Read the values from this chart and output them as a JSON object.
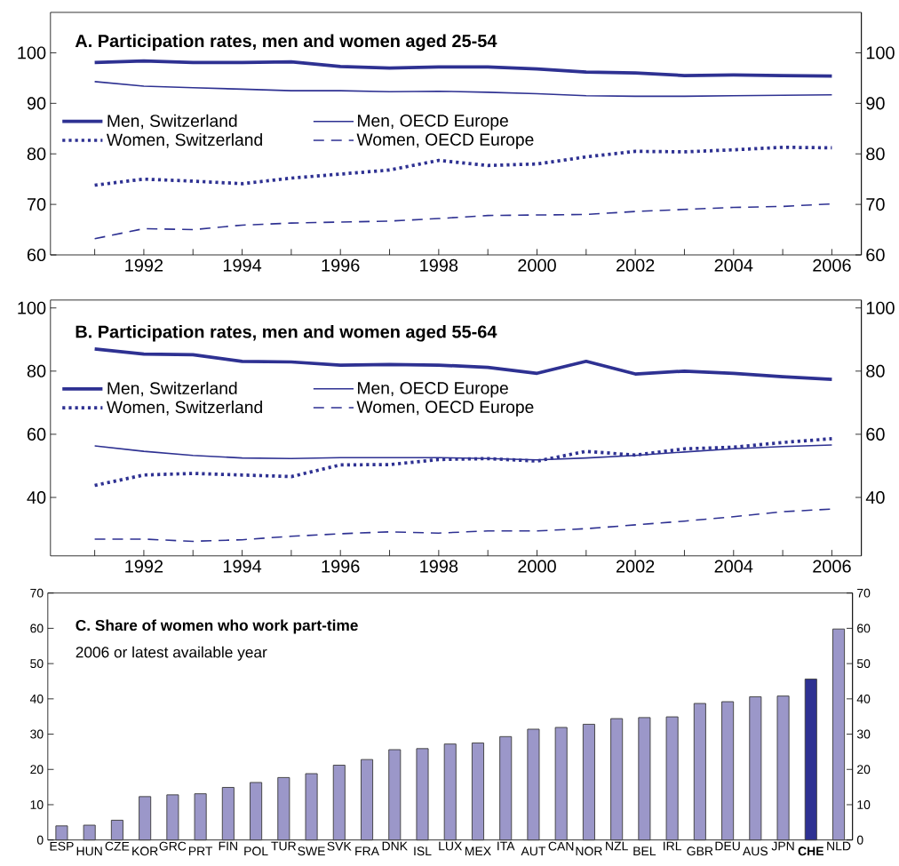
{
  "chart_data": [
    {
      "type": "line",
      "title": "A. Participation rates, men and women aged 25-54",
      "x": [
        1991,
        1992,
        1993,
        1994,
        1995,
        1996,
        1997,
        1998,
        1999,
        2000,
        2001,
        2002,
        2003,
        2004,
        2005,
        2006
      ],
      "xlim": [
        1990.1,
        2006.6
      ],
      "xticks": [
        {
          "value": 1991,
          "label": null
        },
        1992,
        {
          "value": 1993,
          "label": null
        },
        1994,
        {
          "value": 1995,
          "label": null
        },
        1996,
        {
          "value": 1997,
          "label": null
        },
        1998,
        {
          "value": 1999,
          "label": null
        },
        2000,
        {
          "value": 2001,
          "label": null
        },
        2002,
        {
          "value": 2003,
          "label": null
        },
        2004,
        {
          "value": 2005,
          "label": null
        },
        2006
      ],
      "ylim": [
        60,
        108
      ],
      "yticks": [
        60,
        70,
        80,
        90,
        100
      ],
      "y2lim": [
        60,
        108
      ],
      "y2ticks": [
        60,
        70,
        80,
        90,
        100
      ],
      "grid": false,
      "legend": "top left",
      "marker": "none",
      "series": [
        {
          "name": "Men, Switzerland",
          "color": "#2e3192",
          "line_style": "solid",
          "values": [
            98.1,
            98.4,
            98.1,
            98.1,
            98.2,
            97.3,
            97.0,
            97.2,
            97.2,
            96.8,
            96.2,
            96.0,
            95.5,
            95.6,
            95.5,
            95.4
          ]
        },
        {
          "name": "Men, OECD Europe",
          "color": "#2e3192",
          "line_style": "solid",
          "values": [
            94.3,
            93.4,
            93.1,
            92.8,
            92.5,
            92.5,
            92.3,
            92.4,
            92.2,
            91.9,
            91.5,
            91.4,
            91.4,
            91.5,
            91.6,
            91.7
          ]
        },
        {
          "name": "Women, Switzerland",
          "color": "#2e3192",
          "line_style": "dotted",
          "values": [
            73.8,
            75.0,
            74.6,
            74.1,
            75.2,
            76.0,
            76.8,
            78.7,
            77.7,
            78.0,
            79.4,
            80.5,
            80.4,
            80.8,
            81.3,
            81.2
          ]
        },
        {
          "name": "Women, OECD Europe",
          "color": "#2e3192",
          "line_style": "dashed",
          "values": [
            63.2,
            65.2,
            65.0,
            65.9,
            66.3,
            66.5,
            66.7,
            67.2,
            67.8,
            67.9,
            68.0,
            68.6,
            69.0,
            69.4,
            69.6,
            70.1
          ]
        }
      ]
    },
    {
      "type": "line",
      "title": "B. Participation rates, men and women aged 55-64",
      "x": [
        1991,
        1992,
        1993,
        1994,
        1995,
        1996,
        1997,
        1998,
        1999,
        2000,
        2001,
        2002,
        2003,
        2004,
        2005,
        2006
      ],
      "xlim": [
        1990.1,
        2006.6
      ],
      "xticks": [
        {
          "value": 1991,
          "label": null
        },
        1992,
        {
          "value": 1993,
          "label": null
        },
        1994,
        {
          "value": 1995,
          "label": null
        },
        1996,
        {
          "value": 1997,
          "label": null
        },
        1998,
        {
          "value": 1999,
          "label": null
        },
        2000,
        {
          "value": 2001,
          "label": null
        },
        2002,
        {
          "value": 2003,
          "label": null
        },
        2004,
        {
          "value": 2005,
          "label": null
        },
        2006
      ],
      "ylim": [
        21.5,
        102.5
      ],
      "yticks": [
        40,
        60,
        80,
        100
      ],
      "y2lim": [
        21.5,
        102.5
      ],
      "y2ticks": [
        40,
        60,
        80,
        100
      ],
      "grid": false,
      "legend": "top left",
      "marker": "none",
      "series": [
        {
          "name": "Men, Switzerland",
          "color": "#2e3192",
          "line_style": "solid",
          "values": [
            87.0,
            85.4,
            85.2,
            83.1,
            82.9,
            81.9,
            82.1,
            81.9,
            81.2,
            79.3,
            83.1,
            79.1,
            80.0,
            79.3,
            78.2,
            77.4
          ]
        },
        {
          "name": "Men, OECD Europe",
          "color": "#2e3192",
          "line_style": "solid",
          "values": [
            56.3,
            54.6,
            53.3,
            52.5,
            52.3,
            52.6,
            52.6,
            52.6,
            52.3,
            51.9,
            52.5,
            53.3,
            54.4,
            55.4,
            56.1,
            56.6
          ]
        },
        {
          "name": "Women, Switzerland",
          "color": "#2e3192",
          "line_style": "dotted",
          "values": [
            43.8,
            47.1,
            47.6,
            47.1,
            46.6,
            50.3,
            50.4,
            52.0,
            52.3,
            51.5,
            54.6,
            53.4,
            55.4,
            55.9,
            57.4,
            58.6
          ]
        },
        {
          "name": "Women, OECD Europe",
          "color": "#2e3192",
          "line_style": "dashed",
          "values": [
            26.8,
            26.8,
            26.1,
            26.6,
            27.7,
            28.5,
            29.1,
            28.7,
            29.4,
            29.4,
            30.1,
            31.3,
            32.5,
            33.9,
            35.5,
            36.3
          ]
        }
      ]
    },
    {
      "type": "bar",
      "title": "C. Share of women who work part-time",
      "subtitle": "2006 or latest available year",
      "categories": [
        "ESP",
        "HUN",
        "CZE",
        "KOR",
        "GRC",
        "PRT",
        "FIN",
        "POL",
        "TUR",
        "SWE",
        "SVK",
        "FRA",
        "DNK",
        "ISL",
        "LUX",
        "MEX",
        "ITA",
        "AUT",
        "CAN",
        "NOR",
        "NZL",
        "BEL",
        "IRL",
        "GBR",
        "DEU",
        "AUS",
        "JPN",
        "**CHE**",
        "NLD"
      ],
      "values": [
        4.0,
        4.2,
        5.6,
        12.3,
        12.8,
        13.1,
        14.9,
        16.3,
        17.7,
        18.8,
        21.2,
        22.8,
        25.6,
        25.9,
        27.2,
        27.5,
        29.3,
        31.4,
        31.9,
        32.8,
        34.4,
        34.7,
        34.9,
        38.7,
        39.2,
        40.6,
        40.8,
        45.6,
        59.8
      ],
      "colors": [
        "#9b97c9",
        "#9b97c9",
        "#9b97c9",
        "#9b97c9",
        "#9b97c9",
        "#9b97c9",
        "#9b97c9",
        "#9b97c9",
        "#9b97c9",
        "#9b97c9",
        "#9b97c9",
        "#9b97c9",
        "#9b97c9",
        "#9b97c9",
        "#9b97c9",
        "#9b97c9",
        "#9b97c9",
        "#9b97c9",
        "#9b97c9",
        "#9b97c9",
        "#9b97c9",
        "#9b97c9",
        "#9b97c9",
        "#9b97c9",
        "#9b97c9",
        "#9b97c9",
        "#9b97c9",
        "#2e3192",
        "#9b97c9"
      ],
      "ylim": [
        0,
        70
      ],
      "yticks": [
        0,
        10,
        20,
        30,
        40,
        50,
        60,
        70
      ],
      "y2lim": [
        0,
        70
      ],
      "y2ticks": [
        0,
        10,
        20,
        30,
        40,
        50,
        60,
        70
      ],
      "grid": false
    }
  ]
}
